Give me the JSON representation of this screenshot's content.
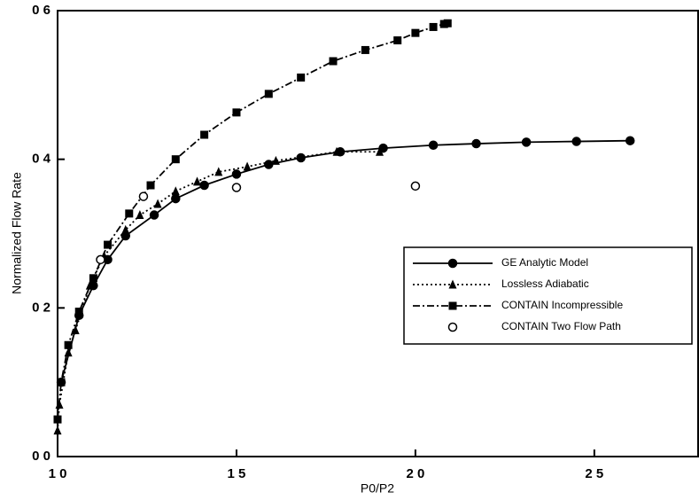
{
  "chart_data": {
    "type": "line",
    "x_label": "P0/P2",
    "y_label": "Normalized Flow Rate",
    "xlim": [
      10,
      27.9
    ],
    "ylim": [
      0,
      0.6
    ],
    "xticks": [
      {
        "value": 10,
        "label": "1 0"
      },
      {
        "value": 15,
        "label": "1 5"
      },
      {
        "value": 20,
        "label": "2 0"
      },
      {
        "value": 25,
        "label": "2 5"
      }
    ],
    "yticks": [
      {
        "value": 0,
        "label": "0 0"
      },
      {
        "value": 0.2,
        "label": "0 2"
      },
      {
        "value": 0.4,
        "label": "0 4"
      },
      {
        "value": 0.6,
        "label": "0 6"
      }
    ],
    "grid": false,
    "legend": "right",
    "series": [
      {
        "name": "GE Analytic Model",
        "color": "#000000",
        "marker": "circle",
        "line_style": "solid",
        "x": [
          10.1,
          10.6,
          11.0,
          11.4,
          11.9,
          12.7,
          13.3,
          14.1,
          15.0,
          15.9,
          16.8,
          17.9,
          19.1,
          20.5,
          21.7,
          23.1,
          24.5,
          26.0
        ],
        "values": [
          0.1,
          0.19,
          0.23,
          0.265,
          0.297,
          0.325,
          0.347,
          0.365,
          0.38,
          0.393,
          0.402,
          0.41,
          0.415,
          0.419,
          0.421,
          0.423,
          0.424,
          0.425
        ]
      },
      {
        "name": "Lossless Adiabatic",
        "color": "#000000",
        "marker": "triangle",
        "line_style": "dotted",
        "x": [
          10.0,
          10.05,
          10.3,
          10.5,
          10.9,
          11.3,
          11.9,
          12.3,
          12.8,
          13.3,
          13.9,
          14.5,
          15.3,
          16.1,
          17.8,
          19.0
        ],
        "values": [
          0.035,
          0.07,
          0.14,
          0.17,
          0.23,
          0.27,
          0.305,
          0.325,
          0.34,
          0.357,
          0.37,
          0.383,
          0.39,
          0.398,
          0.41,
          0.41
        ]
      },
      {
        "name": "CONTAIN Incompressible",
        "color": "#000000",
        "marker": "square",
        "line_style": "dashdot",
        "x": [
          10.0,
          10.1,
          10.3,
          10.6,
          11.0,
          11.4,
          12.0,
          12.6,
          13.3,
          14.1,
          15.0,
          15.9,
          16.8,
          17.7,
          18.6,
          19.5,
          20.0,
          20.5,
          20.8,
          20.9
        ],
        "values": [
          0.05,
          0.1,
          0.15,
          0.195,
          0.24,
          0.285,
          0.327,
          0.365,
          0.4,
          0.433,
          0.463,
          0.488,
          0.51,
          0.532,
          0.547,
          0.56,
          0.57,
          0.578,
          0.582,
          0.583
        ]
      },
      {
        "name": "CONTAIN Two Flow Path",
        "color": "#000000",
        "marker": "open-circle",
        "line_style": "none",
        "x": [
          11.2,
          12.4,
          15.0,
          20.0
        ],
        "values": [
          0.265,
          0.35,
          0.362,
          0.364
        ]
      }
    ]
  }
}
